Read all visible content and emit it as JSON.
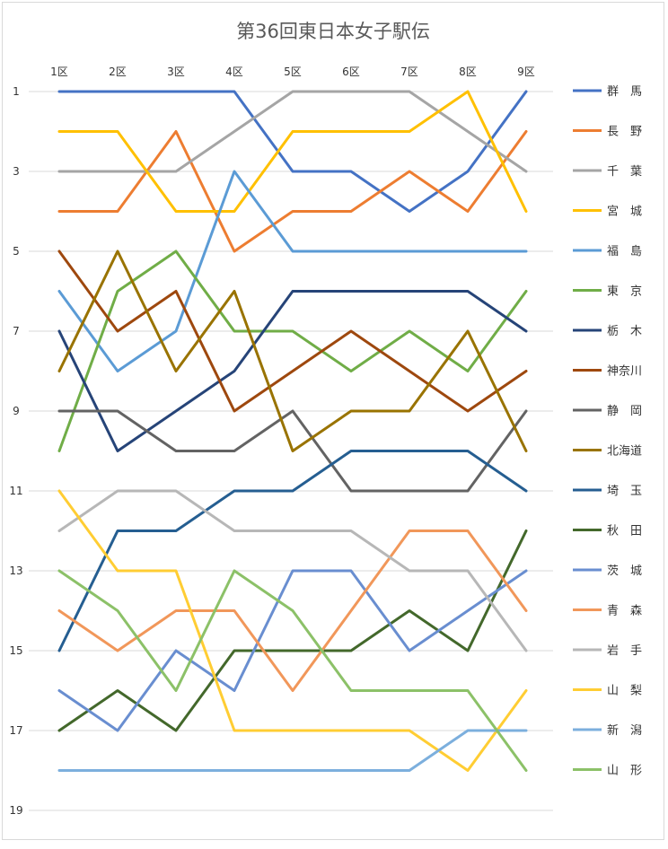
{
  "chart_data": {
    "type": "line",
    "title": "第36回東日本女子駅伝",
    "categories": [
      "1区",
      "2区",
      "3区",
      "4区",
      "5区",
      "6区",
      "7区",
      "8区",
      "9区"
    ],
    "ylim": [
      1,
      19
    ],
    "y_ticks": [
      "1",
      "3",
      "5",
      "7",
      "9",
      "11",
      "13",
      "15",
      "17",
      "19"
    ],
    "y_inverted": true,
    "grid": true,
    "legend_position": "right",
    "series": [
      {
        "name": "群　馬",
        "color": "#4472C4",
        "values": [
          1,
          1,
          1,
          1,
          3,
          3,
          4,
          3,
          1
        ]
      },
      {
        "name": "長　野",
        "color": "#ED7D31",
        "values": [
          4,
          4,
          2,
          5,
          4,
          4,
          3,
          4,
          2
        ]
      },
      {
        "name": "千　葉",
        "color": "#A5A5A5",
        "values": [
          3,
          3,
          3,
          2,
          1,
          1,
          1,
          2,
          3
        ]
      },
      {
        "name": "宮　城",
        "color": "#FFC000",
        "values": [
          2,
          2,
          4,
          4,
          2,
          2,
          2,
          1,
          4
        ]
      },
      {
        "name": "福　島",
        "color": "#5B9BD5",
        "values": [
          6,
          8,
          7,
          3,
          5,
          5,
          5,
          5,
          5
        ]
      },
      {
        "name": "東　京",
        "color": "#70AD47",
        "values": [
          10,
          6,
          5,
          7,
          7,
          8,
          7,
          8,
          6
        ]
      },
      {
        "name": "栃　木",
        "color": "#264478",
        "values": [
          7,
          10,
          9,
          8,
          6,
          6,
          6,
          6,
          7
        ]
      },
      {
        "name": "神奈川",
        "color": "#9E480E",
        "values": [
          5,
          7,
          6,
          9,
          8,
          7,
          8,
          9,
          8
        ]
      },
      {
        "name": "静　岡",
        "color": "#636363",
        "values": [
          9,
          9,
          10,
          10,
          9,
          11,
          11,
          11,
          9
        ]
      },
      {
        "name": "北海道",
        "color": "#997300",
        "values": [
          8,
          5,
          8,
          6,
          10,
          9,
          9,
          7,
          10
        ]
      },
      {
        "name": "埼　玉",
        "color": "#255E91",
        "values": [
          15,
          12,
          12,
          11,
          11,
          10,
          10,
          10,
          11
        ]
      },
      {
        "name": "秋　田",
        "color": "#43682B",
        "values": [
          17,
          16,
          17,
          15,
          15,
          15,
          14,
          15,
          12
        ]
      },
      {
        "name": "茨　城",
        "color": "#698ED0",
        "values": [
          16,
          17,
          15,
          16,
          13,
          13,
          15,
          14,
          13
        ]
      },
      {
        "name": "青　森",
        "color": "#F1975A",
        "values": [
          14,
          15,
          14,
          14,
          16,
          14,
          12,
          12,
          14
        ]
      },
      {
        "name": "岩　手",
        "color": "#B7B7B7",
        "values": [
          12,
          11,
          11,
          12,
          12,
          12,
          13,
          13,
          15
        ]
      },
      {
        "name": "山　梨",
        "color": "#FFCD33",
        "values": [
          11,
          13,
          13,
          17,
          17,
          17,
          17,
          18,
          16
        ]
      },
      {
        "name": "新　潟",
        "color": "#7CAFDD",
        "values": [
          18,
          18,
          18,
          18,
          18,
          18,
          18,
          17,
          17
        ]
      },
      {
        "name": "山　形",
        "color": "#8CC168",
        "values": [
          13,
          14,
          16,
          13,
          14,
          16,
          16,
          16,
          18
        ]
      }
    ]
  }
}
